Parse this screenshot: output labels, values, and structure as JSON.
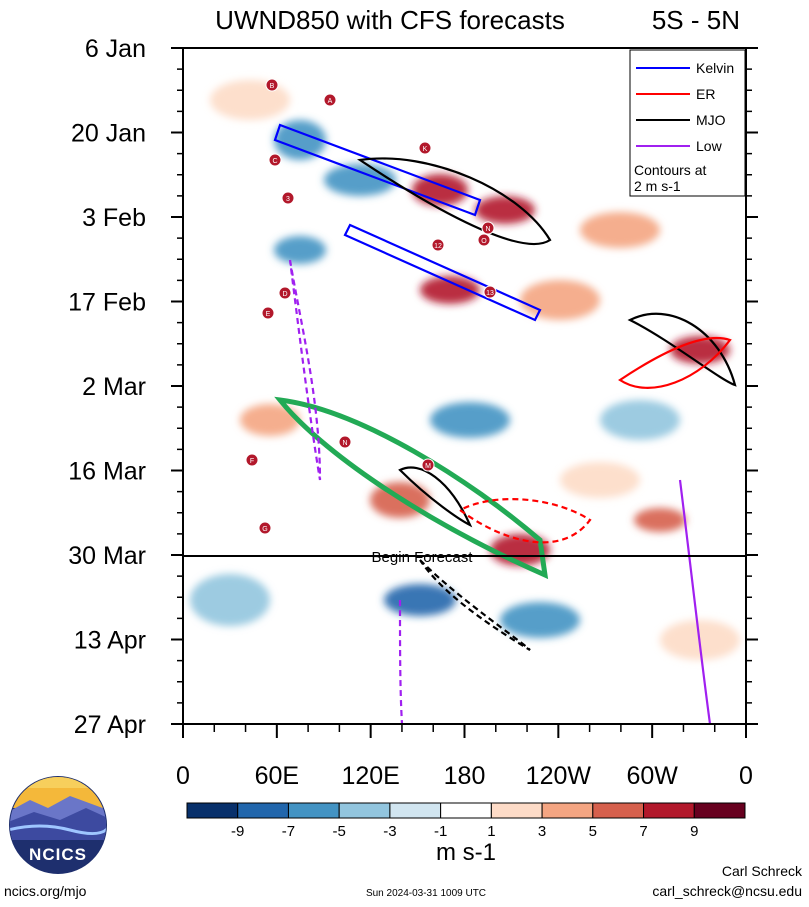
{
  "chart_data": {
    "type": "heatmap",
    "title": "UWND850 with CFS forecasts",
    "region": "5S - 5N",
    "y_ticks": [
      "6 Jan",
      "20 Jan",
      "3 Feb",
      "17 Feb",
      "2 Mar",
      "16 Mar",
      "30 Mar",
      "13 Apr",
      "27 Apr"
    ],
    "x_ticks": [
      "0",
      "60E",
      "120E",
      "180",
      "120W",
      "60W",
      "0"
    ],
    "x_range_deg_east": [
      0,
      360
    ],
    "forecast_line": {
      "date": "30 Mar",
      "label": "Begin Forecast"
    },
    "colorbar": {
      "tick_labels": [
        "-9",
        "-7",
        "-5",
        "-3",
        "-1",
        "1",
        "3",
        "5",
        "7",
        "9"
      ],
      "units": "m s-1",
      "colors": [
        "#08306b",
        "#2166ac",
        "#4393c3",
        "#92c5de",
        "#d1e5f0",
        "#ffffff",
        "#fddbc7",
        "#f4a582",
        "#d6604d",
        "#b2182b",
        "#67001f"
      ]
    },
    "legend": {
      "placement": "top-right",
      "entries": [
        {
          "label": "Kelvin",
          "color": "#0000ff"
        },
        {
          "label": "ER",
          "color": "#ff0000"
        },
        {
          "label": "MJO",
          "color": "#000000"
        },
        {
          "label": "Low",
          "color": "#a020f0"
        }
      ],
      "note_line1": "Contours at",
      "note_line2": "2 m s-1"
    },
    "storm_markers": [
      "B",
      "A",
      "K",
      "C",
      "3",
      "12",
      "N",
      "O",
      "D",
      "E",
      "13",
      "N",
      "M",
      "F",
      "G"
    ]
  },
  "footer": {
    "logo_text": "NCICS",
    "site": "ncics.org/mjo",
    "timestamp": "Sun 2024-03-31 1009 UTC",
    "author": "Carl Schreck",
    "email": "carl_schreck@ncsu.edu"
  }
}
